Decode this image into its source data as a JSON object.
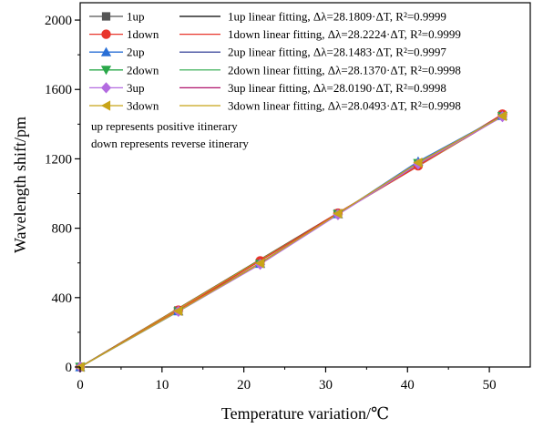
{
  "chart_data": {
    "type": "line",
    "xlabel": "Temperature variation/℃",
    "ylabel": "Wavelength shift/pm",
    "xlim": [
      0,
      55
    ],
    "ylim": [
      0,
      2100
    ],
    "xticks": [
      0,
      10,
      20,
      30,
      40,
      50
    ],
    "yticks": [
      0,
      400,
      800,
      1200,
      1600,
      2000
    ],
    "x": [
      0,
      12,
      22,
      31.5,
      41.3,
      51.6
    ],
    "series": [
      {
        "name": "1up",
        "marker": "square",
        "color": "#555555",
        "values": [
          0,
          326,
          600,
          885,
          1170,
          1452
        ]
      },
      {
        "name": "1down",
        "marker": "circle",
        "color": "#e8352b",
        "values": [
          0,
          328,
          612,
          887,
          1160,
          1458
        ]
      },
      {
        "name": "2up",
        "marker": "triangle-up",
        "color": "#2a6fd6",
        "values": [
          0,
          322,
          596,
          882,
          1185,
          1448
        ]
      },
      {
        "name": "2down",
        "marker": "triangle-down",
        "color": "#2aa84a",
        "values": [
          0,
          320,
          594,
          880,
          1175,
          1445
        ]
      },
      {
        "name": "3up",
        "marker": "diamond",
        "color": "#b36be0",
        "values": [
          0,
          321,
          592,
          878,
          1170,
          1443
        ]
      },
      {
        "name": "3down",
        "marker": "triangle-left",
        "color": "#c8a418",
        "values": [
          0,
          323,
          598,
          884,
          1178,
          1447
        ]
      }
    ],
    "fits": [
      {
        "name": "1up  linear fitting, Δλ=28.1809·ΔT, R²=0.9999",
        "slope": 28.1809,
        "color": "#000000"
      },
      {
        "name": "1down  linear fitting, Δλ=28.2224·ΔT, R²=0.9999",
        "slope": 28.2224,
        "color": "#e8352b"
      },
      {
        "name": "2up  linear fitting, Δλ=28.1483·ΔT, R²=0.9997",
        "slope": 28.1483,
        "color": "#1c2a8c"
      },
      {
        "name": "2down  linear fitting, Δλ=28.1370·ΔT, R²=0.9998",
        "slope": 28.137,
        "color": "#2aa84a"
      },
      {
        "name": "3up  linear fitting, Δλ=28.0190·ΔT, R²=0.9998",
        "slope": 28.019,
        "color": "#b0126b"
      },
      {
        "name": "3down  linear fitting, Δλ=28.0493·ΔT, R²=0.9998",
        "slope": 28.0493,
        "color": "#c8a418"
      }
    ],
    "annotations": [
      "up represents  positive itinerary",
      "down represents  reverse itinerary"
    ],
    "grid": false,
    "legend": "top-left"
  }
}
